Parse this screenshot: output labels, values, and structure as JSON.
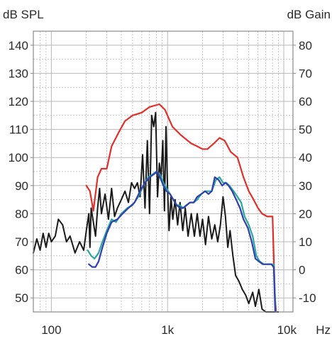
{
  "chart_data": {
    "type": "line",
    "xlabel": "Hz",
    "ylabel_left": "dB SPL",
    "ylabel_right": "dB Gain",
    "x_scale": "log",
    "xlim": [
      70,
      12000
    ],
    "ylim_left": [
      45,
      145
    ],
    "ylim_right": [
      -15,
      85
    ],
    "x_ticks": [
      {
        "value": 100,
        "label": "100"
      },
      {
        "value": 1000,
        "label": "1k"
      },
      {
        "value": 10000,
        "label": "10k"
      }
    ],
    "y_ticks_left": [
      "140",
      "130",
      "120",
      "110",
      "100",
      "90",
      "80",
      "70",
      "60",
      "50"
    ],
    "y_ticks_right": [
      "80",
      "70",
      "60",
      "50",
      "40",
      "30",
      "20",
      "10",
      "0",
      "-10"
    ],
    "grid": true,
    "colors": {
      "black": "#1a1a1a",
      "red": "#e0302a",
      "blue": "#2f3fae",
      "teal": "#2aa6a0",
      "grid": "#b8b8b8",
      "frame": "#8a8a8a"
    },
    "series": [
      {
        "color": "black",
        "axis": "left",
        "points": [
          [
            70,
            66
          ],
          [
            75,
            71
          ],
          [
            80,
            67
          ],
          [
            85,
            73
          ],
          [
            90,
            68
          ],
          [
            95,
            73
          ],
          [
            100,
            70
          ],
          [
            108,
            72
          ],
          [
            115,
            78
          ],
          [
            125,
            76
          ],
          [
            135,
            70
          ],
          [
            145,
            72
          ],
          [
            160,
            66
          ],
          [
            175,
            70
          ],
          [
            190,
            67
          ],
          [
            200,
            74
          ],
          [
            210,
            80
          ],
          [
            215,
            68
          ],
          [
            220,
            82
          ],
          [
            230,
            77
          ],
          [
            240,
            72
          ],
          [
            250,
            82
          ],
          [
            260,
            89
          ],
          [
            270,
            80
          ],
          [
            290,
            87
          ],
          [
            310,
            78
          ],
          [
            330,
            89
          ],
          [
            350,
            79
          ],
          [
            370,
            82
          ],
          [
            400,
            85
          ],
          [
            430,
            88
          ],
          [
            460,
            84
          ],
          [
            490,
            91
          ],
          [
            520,
            89
          ],
          [
            550,
            91
          ],
          [
            580,
            86
          ],
          [
            610,
            101
          ],
          [
            640,
            82
          ],
          [
            670,
            106
          ],
          [
            700,
            80
          ],
          [
            730,
            115
          ],
          [
            760,
            111
          ],
          [
            790,
            116
          ],
          [
            820,
            86
          ],
          [
            850,
            98
          ],
          [
            880,
            93
          ],
          [
            910,
            106
          ],
          [
            940,
            81
          ],
          [
            970,
            111
          ],
          [
            1000,
            89
          ],
          [
            1030,
            74
          ],
          [
            1070,
            86
          ],
          [
            1110,
            78
          ],
          [
            1160,
            85
          ],
          [
            1220,
            76
          ],
          [
            1280,
            84
          ],
          [
            1350,
            74
          ],
          [
            1420,
            82
          ],
          [
            1500,
            72
          ],
          [
            1600,
            80
          ],
          [
            1700,
            72
          ],
          [
            1800,
            80
          ],
          [
            1900,
            72
          ],
          [
            2000,
            78
          ],
          [
            2120,
            69
          ],
          [
            2250,
            79
          ],
          [
            2400,
            71
          ],
          [
            2550,
            76
          ],
          [
            2700,
            70
          ],
          [
            2850,
            76
          ],
          [
            3000,
            86
          ],
          [
            3150,
            79
          ],
          [
            3300,
            68
          ],
          [
            3450,
            74
          ],
          [
            3650,
            65
          ],
          [
            3850,
            58
          ],
          [
            4100,
            56
          ],
          [
            4400,
            53
          ],
          [
            4700,
            51
          ],
          [
            5000,
            48
          ],
          [
            5400,
            52
          ],
          [
            5700,
            47
          ],
          [
            6100,
            53
          ],
          [
            6500,
            46
          ],
          [
            7000,
            44
          ],
          [
            7600,
            44
          ],
          [
            8200,
            44
          ],
          [
            9000,
            44
          ]
        ]
      },
      {
        "color": "red",
        "axis": "right",
        "points": [
          [
            200,
            30
          ],
          [
            215,
            28
          ],
          [
            230,
            21
          ],
          [
            250,
            33
          ],
          [
            270,
            36
          ],
          [
            300,
            36
          ],
          [
            330,
            44
          ],
          [
            380,
            49
          ],
          [
            430,
            53
          ],
          [
            500,
            55
          ],
          [
            600,
            56
          ],
          [
            700,
            58
          ],
          [
            850,
            59
          ],
          [
            950,
            57
          ],
          [
            1100,
            51
          ],
          [
            1300,
            48
          ],
          [
            1600,
            45
          ],
          [
            1800,
            44
          ],
          [
            2000,
            43
          ],
          [
            2200,
            43
          ],
          [
            2500,
            45
          ],
          [
            2800,
            47
          ],
          [
            3100,
            46
          ],
          [
            3500,
            42
          ],
          [
            4000,
            40
          ],
          [
            4500,
            33
          ],
          [
            5000,
            28
          ],
          [
            5500,
            25
          ],
          [
            6000,
            22
          ],
          [
            6500,
            20
          ],
          [
            7200,
            19
          ],
          [
            8000,
            19
          ],
          [
            8400,
            -10
          ],
          [
            8600,
            -20
          ]
        ]
      },
      {
        "color": "teal",
        "axis": "right",
        "points": [
          [
            205,
            7
          ],
          [
            220,
            5
          ],
          [
            235,
            4
          ],
          [
            255,
            6
          ],
          [
            275,
            10
          ],
          [
            300,
            14
          ],
          [
            330,
            18
          ],
          [
            360,
            17
          ],
          [
            400,
            20
          ],
          [
            450,
            22
          ],
          [
            500,
            23
          ],
          [
            560,
            26
          ],
          [
            620,
            30
          ],
          [
            680,
            33
          ],
          [
            740,
            34
          ],
          [
            800,
            35
          ],
          [
            860,
            34
          ],
          [
            920,
            31
          ],
          [
            980,
            29
          ],
          [
            1050,
            27
          ],
          [
            1120,
            25
          ],
          [
            1200,
            23
          ],
          [
            1280,
            23
          ],
          [
            1360,
            22
          ],
          [
            1450,
            23
          ],
          [
            1560,
            24
          ],
          [
            1680,
            24
          ],
          [
            1800,
            25
          ],
          [
            1950,
            27
          ],
          [
            2100,
            28
          ],
          [
            2250,
            28
          ],
          [
            2400,
            28
          ],
          [
            2600,
            32
          ],
          [
            2800,
            33
          ],
          [
            3000,
            31
          ],
          [
            3200,
            31
          ],
          [
            3400,
            30
          ],
          [
            3700,
            28
          ],
          [
            4000,
            26
          ],
          [
            4300,
            24
          ],
          [
            4600,
            19
          ],
          [
            5000,
            16
          ],
          [
            5400,
            12
          ],
          [
            5800,
            5
          ],
          [
            6200,
            3
          ],
          [
            6700,
            2
          ],
          [
            7300,
            2
          ],
          [
            7800,
            2
          ],
          [
            8200,
            2
          ],
          [
            8500,
            -15
          ]
        ]
      },
      {
        "color": "blue",
        "axis": "right",
        "points": [
          [
            210,
            2
          ],
          [
            225,
            1
          ],
          [
            240,
            1
          ],
          [
            255,
            3
          ],
          [
            275,
            8
          ],
          [
            300,
            13
          ],
          [
            330,
            17
          ],
          [
            370,
            18
          ],
          [
            410,
            20
          ],
          [
            460,
            22
          ],
          [
            520,
            24
          ],
          [
            580,
            28
          ],
          [
            640,
            31
          ],
          [
            700,
            33
          ],
          [
            760,
            34
          ],
          [
            810,
            35
          ],
          [
            860,
            33
          ],
          [
            920,
            30
          ],
          [
            980,
            28
          ],
          [
            1050,
            27
          ],
          [
            1120,
            25
          ],
          [
            1200,
            23
          ],
          [
            1280,
            22
          ],
          [
            1360,
            22
          ],
          [
            1460,
            23
          ],
          [
            1560,
            24
          ],
          [
            1680,
            24
          ],
          [
            1800,
            26
          ],
          [
            1950,
            27
          ],
          [
            2100,
            28
          ],
          [
            2250,
            27
          ],
          [
            2400,
            28
          ],
          [
            2550,
            33
          ],
          [
            2750,
            32
          ],
          [
            2950,
            30
          ],
          [
            3150,
            31
          ],
          [
            3350,
            30
          ],
          [
            3600,
            28
          ],
          [
            3900,
            25
          ],
          [
            4200,
            22
          ],
          [
            4500,
            18
          ],
          [
            4900,
            15
          ],
          [
            5300,
            10
          ],
          [
            5700,
            4
          ],
          [
            6100,
            3
          ],
          [
            6600,
            2
          ],
          [
            7200,
            2
          ],
          [
            7800,
            2
          ],
          [
            8200,
            1
          ],
          [
            8450,
            -15
          ]
        ]
      }
    ]
  }
}
